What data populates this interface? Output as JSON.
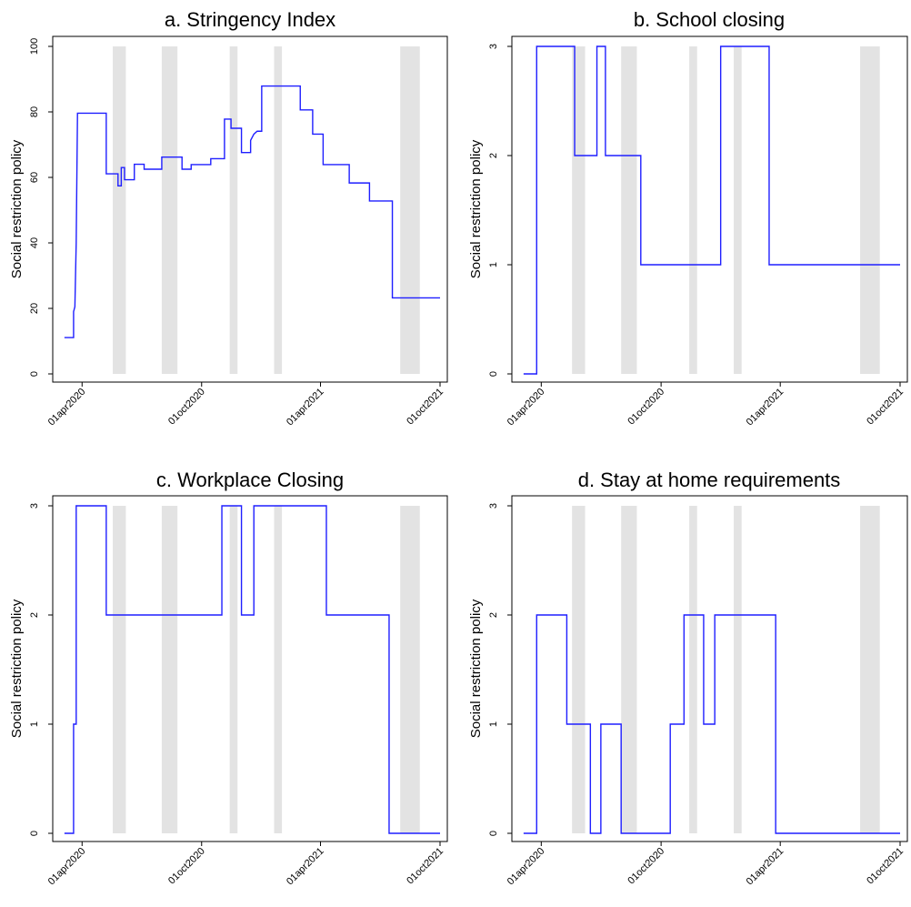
{
  "colors": {
    "line": "#1f1fff",
    "shade": "#e3e3e3",
    "frame": "#000000"
  },
  "chart_data": [
    {
      "type": "line",
      "title": "a. Stringency Index",
      "ylabel": "Social restriction policy",
      "xlabel": "",
      "x_tick_labels": [
        "01apr2020",
        "01oct2020",
        "01apr2021",
        "01oct2021"
      ],
      "y_ticks": [
        "0",
        "20",
        "40",
        "60",
        "80",
        "100"
      ],
      "ylim": [
        0,
        100
      ],
      "xlim": [
        "2020-03-01",
        "2021-10-01"
      ],
      "grid": false,
      "legend": "none",
      "shaded_periods": [
        [
          "2020-05-18",
          "2020-06-07"
        ],
        [
          "2020-08-01",
          "2020-08-25"
        ],
        [
          "2020-11-13",
          "2020-11-25"
        ],
        [
          "2021-01-20",
          "2021-02-01"
        ],
        [
          "2021-08-01",
          "2021-08-31"
        ]
      ],
      "series": [
        {
          "points": [
            [
              "2020-03-05",
              11.1
            ],
            [
              "2020-03-19",
              11.1
            ],
            [
              "2020-03-19",
              19
            ],
            [
              "2020-03-21",
              20.5
            ],
            [
              "2020-03-23",
              40
            ],
            [
              "2020-03-25",
              79.6
            ],
            [
              "2020-05-08",
              79.6
            ],
            [
              "2020-05-08",
              61.1
            ],
            [
              "2020-05-26",
              61.1
            ],
            [
              "2020-05-26",
              57.4
            ],
            [
              "2020-05-31",
              57.4
            ],
            [
              "2020-05-31",
              63
            ],
            [
              "2020-06-05",
              63
            ],
            [
              "2020-06-05",
              59.3
            ],
            [
              "2020-06-20",
              59.3
            ],
            [
              "2020-06-20",
              64
            ],
            [
              "2020-07-05",
              64
            ],
            [
              "2020-07-05",
              62.5
            ],
            [
              "2020-08-01",
              62.5
            ],
            [
              "2020-08-01",
              66.2
            ],
            [
              "2020-09-01",
              66.2
            ],
            [
              "2020-09-01",
              62.5
            ],
            [
              "2020-09-15",
              62.5
            ],
            [
              "2020-09-15",
              63.9
            ],
            [
              "2020-10-15",
              63.9
            ],
            [
              "2020-10-15",
              65.7
            ],
            [
              "2020-11-05",
              65.7
            ],
            [
              "2020-11-05",
              77.8
            ],
            [
              "2020-11-15",
              77.8
            ],
            [
              "2020-11-15",
              75
            ],
            [
              "2020-12-01",
              75
            ],
            [
              "2020-12-01",
              67.6
            ],
            [
              "2020-12-15",
              67.6
            ],
            [
              "2020-12-15",
              71.3
            ],
            [
              "2020-12-20",
              73.2
            ],
            [
              "2020-12-25",
              74.1
            ],
            [
              "2021-01-01",
              74.1
            ],
            [
              "2021-01-01",
              87.9
            ],
            [
              "2021-03-01",
              87.9
            ],
            [
              "2021-03-01",
              80.6
            ],
            [
              "2021-03-20",
              80.6
            ],
            [
              "2021-03-20",
              73.2
            ],
            [
              "2021-04-05",
              73.2
            ],
            [
              "2021-04-05",
              63.9
            ],
            [
              "2021-05-15",
              63.9
            ],
            [
              "2021-05-15",
              58.3
            ],
            [
              "2021-06-15",
              58.3
            ],
            [
              "2021-06-15",
              52.8
            ],
            [
              "2021-07-20",
              52.8
            ],
            [
              "2021-07-20",
              23.2
            ],
            [
              "2021-10-01",
              23.2
            ]
          ]
        }
      ]
    },
    {
      "type": "line",
      "title": "b. School closing",
      "ylabel": "Social restriction policy",
      "xlabel": "",
      "x_tick_labels": [
        "01apr2020",
        "01oct2020",
        "01apr2021",
        "01oct2021"
      ],
      "y_ticks": [
        "0",
        "1",
        "2",
        "3"
      ],
      "ylim": [
        0,
        3
      ],
      "xlim": [
        "2020-03-01",
        "2021-10-01"
      ],
      "grid": false,
      "legend": "none",
      "shaded_periods": [
        [
          "2020-05-18",
          "2020-06-07"
        ],
        [
          "2020-08-01",
          "2020-08-25"
        ],
        [
          "2020-11-13",
          "2020-11-25"
        ],
        [
          "2021-01-20",
          "2021-02-01"
        ],
        [
          "2021-08-01",
          "2021-08-31"
        ]
      ],
      "series": [
        {
          "points": [
            [
              "2020-03-05",
              0
            ],
            [
              "2020-03-25",
              0
            ],
            [
              "2020-03-25",
              3
            ],
            [
              "2020-05-22",
              3
            ],
            [
              "2020-05-22",
              2
            ],
            [
              "2020-06-25",
              2
            ],
            [
              "2020-06-25",
              3
            ],
            [
              "2020-07-08",
              3
            ],
            [
              "2020-07-08",
              2
            ],
            [
              "2020-08-31",
              2
            ],
            [
              "2020-08-31",
              1
            ],
            [
              "2020-12-31",
              1
            ],
            [
              "2020-12-31",
              3
            ],
            [
              "2021-03-15",
              3
            ],
            [
              "2021-03-15",
              1
            ],
            [
              "2021-10-01",
              1
            ]
          ]
        }
      ]
    },
    {
      "type": "line",
      "title": "c. Workplace Closing",
      "ylabel": "Social restriction policy",
      "xlabel": "",
      "x_tick_labels": [
        "01apr2020",
        "01oct2020",
        "01apr2021",
        "01oct2021"
      ],
      "y_ticks": [
        "0",
        "1",
        "2",
        "3"
      ],
      "ylim": [
        0,
        3
      ],
      "xlim": [
        "2020-03-01",
        "2021-10-01"
      ],
      "grid": false,
      "legend": "none",
      "shaded_periods": [
        [
          "2020-05-18",
          "2020-06-07"
        ],
        [
          "2020-08-01",
          "2020-08-25"
        ],
        [
          "2020-11-13",
          "2020-11-25"
        ],
        [
          "2021-01-20",
          "2021-02-01"
        ],
        [
          "2021-08-01",
          "2021-08-31"
        ]
      ],
      "series": [
        {
          "points": [
            [
              "2020-03-05",
              0
            ],
            [
              "2020-03-19",
              0
            ],
            [
              "2020-03-19",
              1
            ],
            [
              "2020-03-23",
              1
            ],
            [
              "2020-03-23",
              3
            ],
            [
              "2020-05-08",
              3
            ],
            [
              "2020-05-08",
              2
            ],
            [
              "2020-11-01",
              2
            ],
            [
              "2020-11-01",
              3
            ],
            [
              "2020-12-01",
              3
            ],
            [
              "2020-12-01",
              2
            ],
            [
              "2020-12-20",
              2
            ],
            [
              "2020-12-20",
              3
            ],
            [
              "2021-04-10",
              3
            ],
            [
              "2021-04-10",
              2
            ],
            [
              "2021-07-15",
              2
            ],
            [
              "2021-07-15",
              0
            ],
            [
              "2021-10-01",
              0
            ]
          ]
        }
      ]
    },
    {
      "type": "line",
      "title": "d. Stay at home requirements",
      "ylabel": "Social restriction policy",
      "xlabel": "",
      "x_tick_labels": [
        "01apr2020",
        "01oct2020",
        "01apr2021",
        "01oct2021"
      ],
      "y_ticks": [
        "0",
        "1",
        "2",
        "3"
      ],
      "ylim": [
        0,
        3
      ],
      "xlim": [
        "2020-03-01",
        "2021-10-01"
      ],
      "grid": false,
      "legend": "none",
      "shaded_periods": [
        [
          "2020-05-18",
          "2020-06-07"
        ],
        [
          "2020-08-01",
          "2020-08-25"
        ],
        [
          "2020-11-13",
          "2020-11-25"
        ],
        [
          "2021-01-20",
          "2021-02-01"
        ],
        [
          "2021-08-01",
          "2021-08-31"
        ]
      ],
      "series": [
        {
          "points": [
            [
              "2020-03-05",
              0
            ],
            [
              "2020-03-25",
              0
            ],
            [
              "2020-03-25",
              2
            ],
            [
              "2020-05-10",
              2
            ],
            [
              "2020-05-10",
              1
            ],
            [
              "2020-06-15",
              1
            ],
            [
              "2020-06-15",
              0
            ],
            [
              "2020-07-01",
              0
            ],
            [
              "2020-07-01",
              1
            ],
            [
              "2020-08-01",
              1
            ],
            [
              "2020-08-01",
              0
            ],
            [
              "2020-10-15",
              0
            ],
            [
              "2020-10-15",
              1
            ],
            [
              "2020-11-05",
              1
            ],
            [
              "2020-11-05",
              2
            ],
            [
              "2020-12-05",
              2
            ],
            [
              "2020-12-05",
              1
            ],
            [
              "2020-12-22",
              1
            ],
            [
              "2020-12-22",
              2
            ],
            [
              "2021-03-25",
              2
            ],
            [
              "2021-03-25",
              0
            ],
            [
              "2021-10-01",
              0
            ]
          ]
        }
      ]
    }
  ]
}
